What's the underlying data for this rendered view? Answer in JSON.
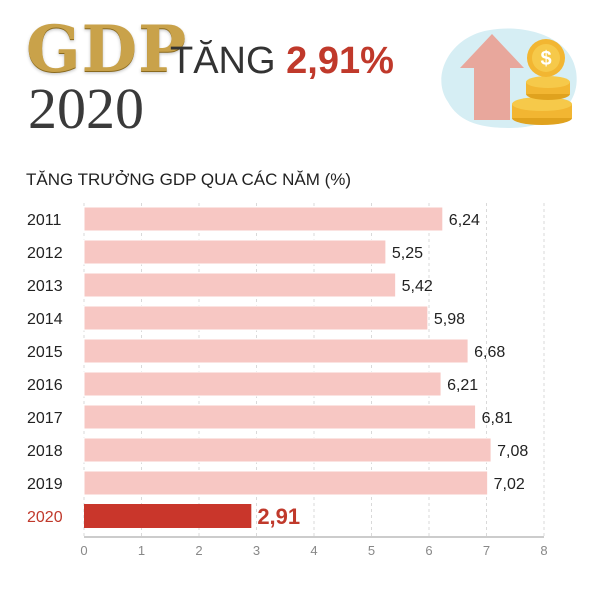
{
  "header": {
    "gdp_word": "GDP",
    "year": "2020",
    "headline_prefix": "TĂNG",
    "headline_value": "2,91%"
  },
  "icons": {
    "hero": "rising-arrow-with-coins-icon"
  },
  "colors": {
    "bar_default": "#f7c7c3",
    "bar_highlight": "#c9362b",
    "highlight_text": "#c0392b",
    "gold": "#c9a24a"
  },
  "chart_data": {
    "type": "bar",
    "orientation": "horizontal",
    "title": "TĂNG TRƯỞNG GDP QUA CÁC NĂM (%)",
    "categories": [
      "2011",
      "2012",
      "2013",
      "2014",
      "2015",
      "2016",
      "2017",
      "2018",
      "2019",
      "2020"
    ],
    "values": [
      6.24,
      5.25,
      5.42,
      5.98,
      6.68,
      6.21,
      6.81,
      7.08,
      7.02,
      2.91
    ],
    "value_labels": [
      "6,24",
      "5,25",
      "5,42",
      "5,98",
      "6,68",
      "6,21",
      "6,81",
      "7,08",
      "7,02",
      "2,91"
    ],
    "highlight_category": "2020",
    "xlim": [
      0,
      8
    ],
    "xticks": [
      "0",
      "1",
      "2",
      "3",
      "4",
      "5",
      "6",
      "7",
      "8"
    ],
    "grid": true,
    "legend": "none"
  }
}
